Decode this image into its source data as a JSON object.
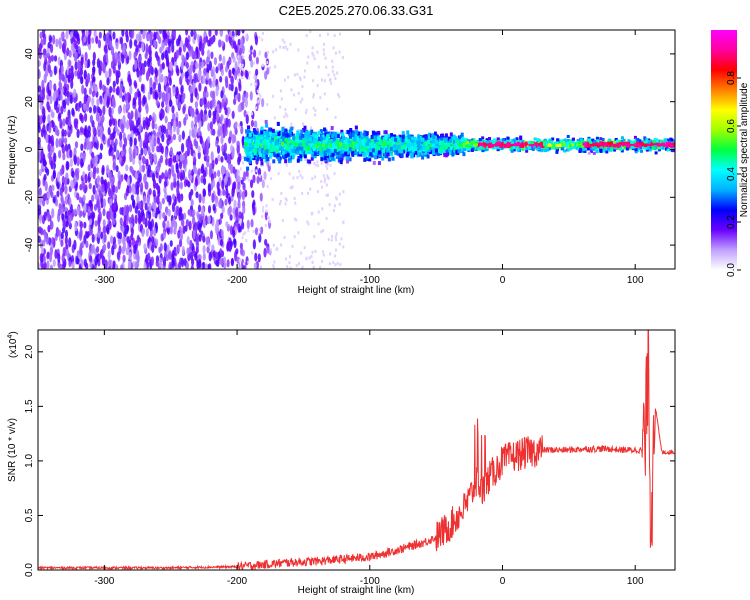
{
  "title": "C2E5.2025.270.06.33.G31",
  "chart_data": [
    {
      "type": "heatmap",
      "title": "C2E5.2025.270.06.33.G31",
      "xlabel": "Height of straight line (km)",
      "ylabel": "Frequency (Hz)",
      "xlim": [
        -350,
        130
      ],
      "ylim": [
        -50,
        50
      ],
      "xticks": [
        -300,
        -200,
        -100,
        0,
        100
      ],
      "yticks": [
        -40,
        -20,
        0,
        20,
        40
      ],
      "colorbar": {
        "label": "Normalized spectral amplitude",
        "ticks": [
          "0.0",
          "0.2",
          "0.4",
          "0.6",
          "0.8"
        ],
        "range": [
          0,
          1
        ],
        "colormap": [
          "#ffffff",
          "#c0a0ff",
          "#6a00ff",
          "#0000ff",
          "#00b0ff",
          "#00ffff",
          "#00ff40",
          "#a0ff00",
          "#ffff00",
          "#ff8000",
          "#ff0000",
          "#ff00a0",
          "#ff00ff"
        ]
      },
      "regions": [
        {
          "x_from": -350,
          "x_to": -195,
          "description": "scattered noise over full band"
        },
        {
          "x_from": -195,
          "x_to": -30,
          "center_hz": 2,
          "spread_hz": 7
        },
        {
          "x_from": -30,
          "x_to": 130,
          "center_hz": 2,
          "spread_hz": 2
        }
      ]
    },
    {
      "type": "line",
      "xlabel": "Height of straight line (km)",
      "ylabel": "SNR (10 * v/v)",
      "y_multiplier": "(x10",
      "y_multiplier_exp": "4",
      "y_multiplier_close": ")",
      "xlim": [
        -350,
        130
      ],
      "ylim": [
        0,
        2.2
      ],
      "xticks": [
        -300,
        -200,
        -100,
        0,
        100
      ],
      "yticks": [
        "0.0",
        "0.5",
        "1.0",
        "1.5",
        "2.0"
      ],
      "line_color": "#ee3030",
      "series": [
        {
          "x": [
            -350,
            -300,
            -250,
            -200,
            -180,
            -160,
            -140,
            -120,
            -100,
            -80,
            -60,
            -50,
            -40,
            -30,
            -25,
            -20,
            -15,
            -10,
            -5,
            0,
            10,
            20,
            30,
            40,
            50,
            60,
            70,
            80,
            90,
            100,
            105,
            108,
            110,
            112,
            114,
            120,
            130
          ],
          "y": [
            0.02,
            0.02,
            0.02,
            0.03,
            0.05,
            0.07,
            0.08,
            0.1,
            0.12,
            0.18,
            0.25,
            0.3,
            0.4,
            0.55,
            0.65,
            0.8,
            0.72,
            0.85,
            0.92,
            1.0,
            1.05,
            1.08,
            1.1,
            1.1,
            1.1,
            1.11,
            1.11,
            1.11,
            1.1,
            1.1,
            1.1,
            1.2,
            2.15,
            0.2,
            1.6,
            1.08,
            1.08
          ]
        }
      ]
    }
  ]
}
